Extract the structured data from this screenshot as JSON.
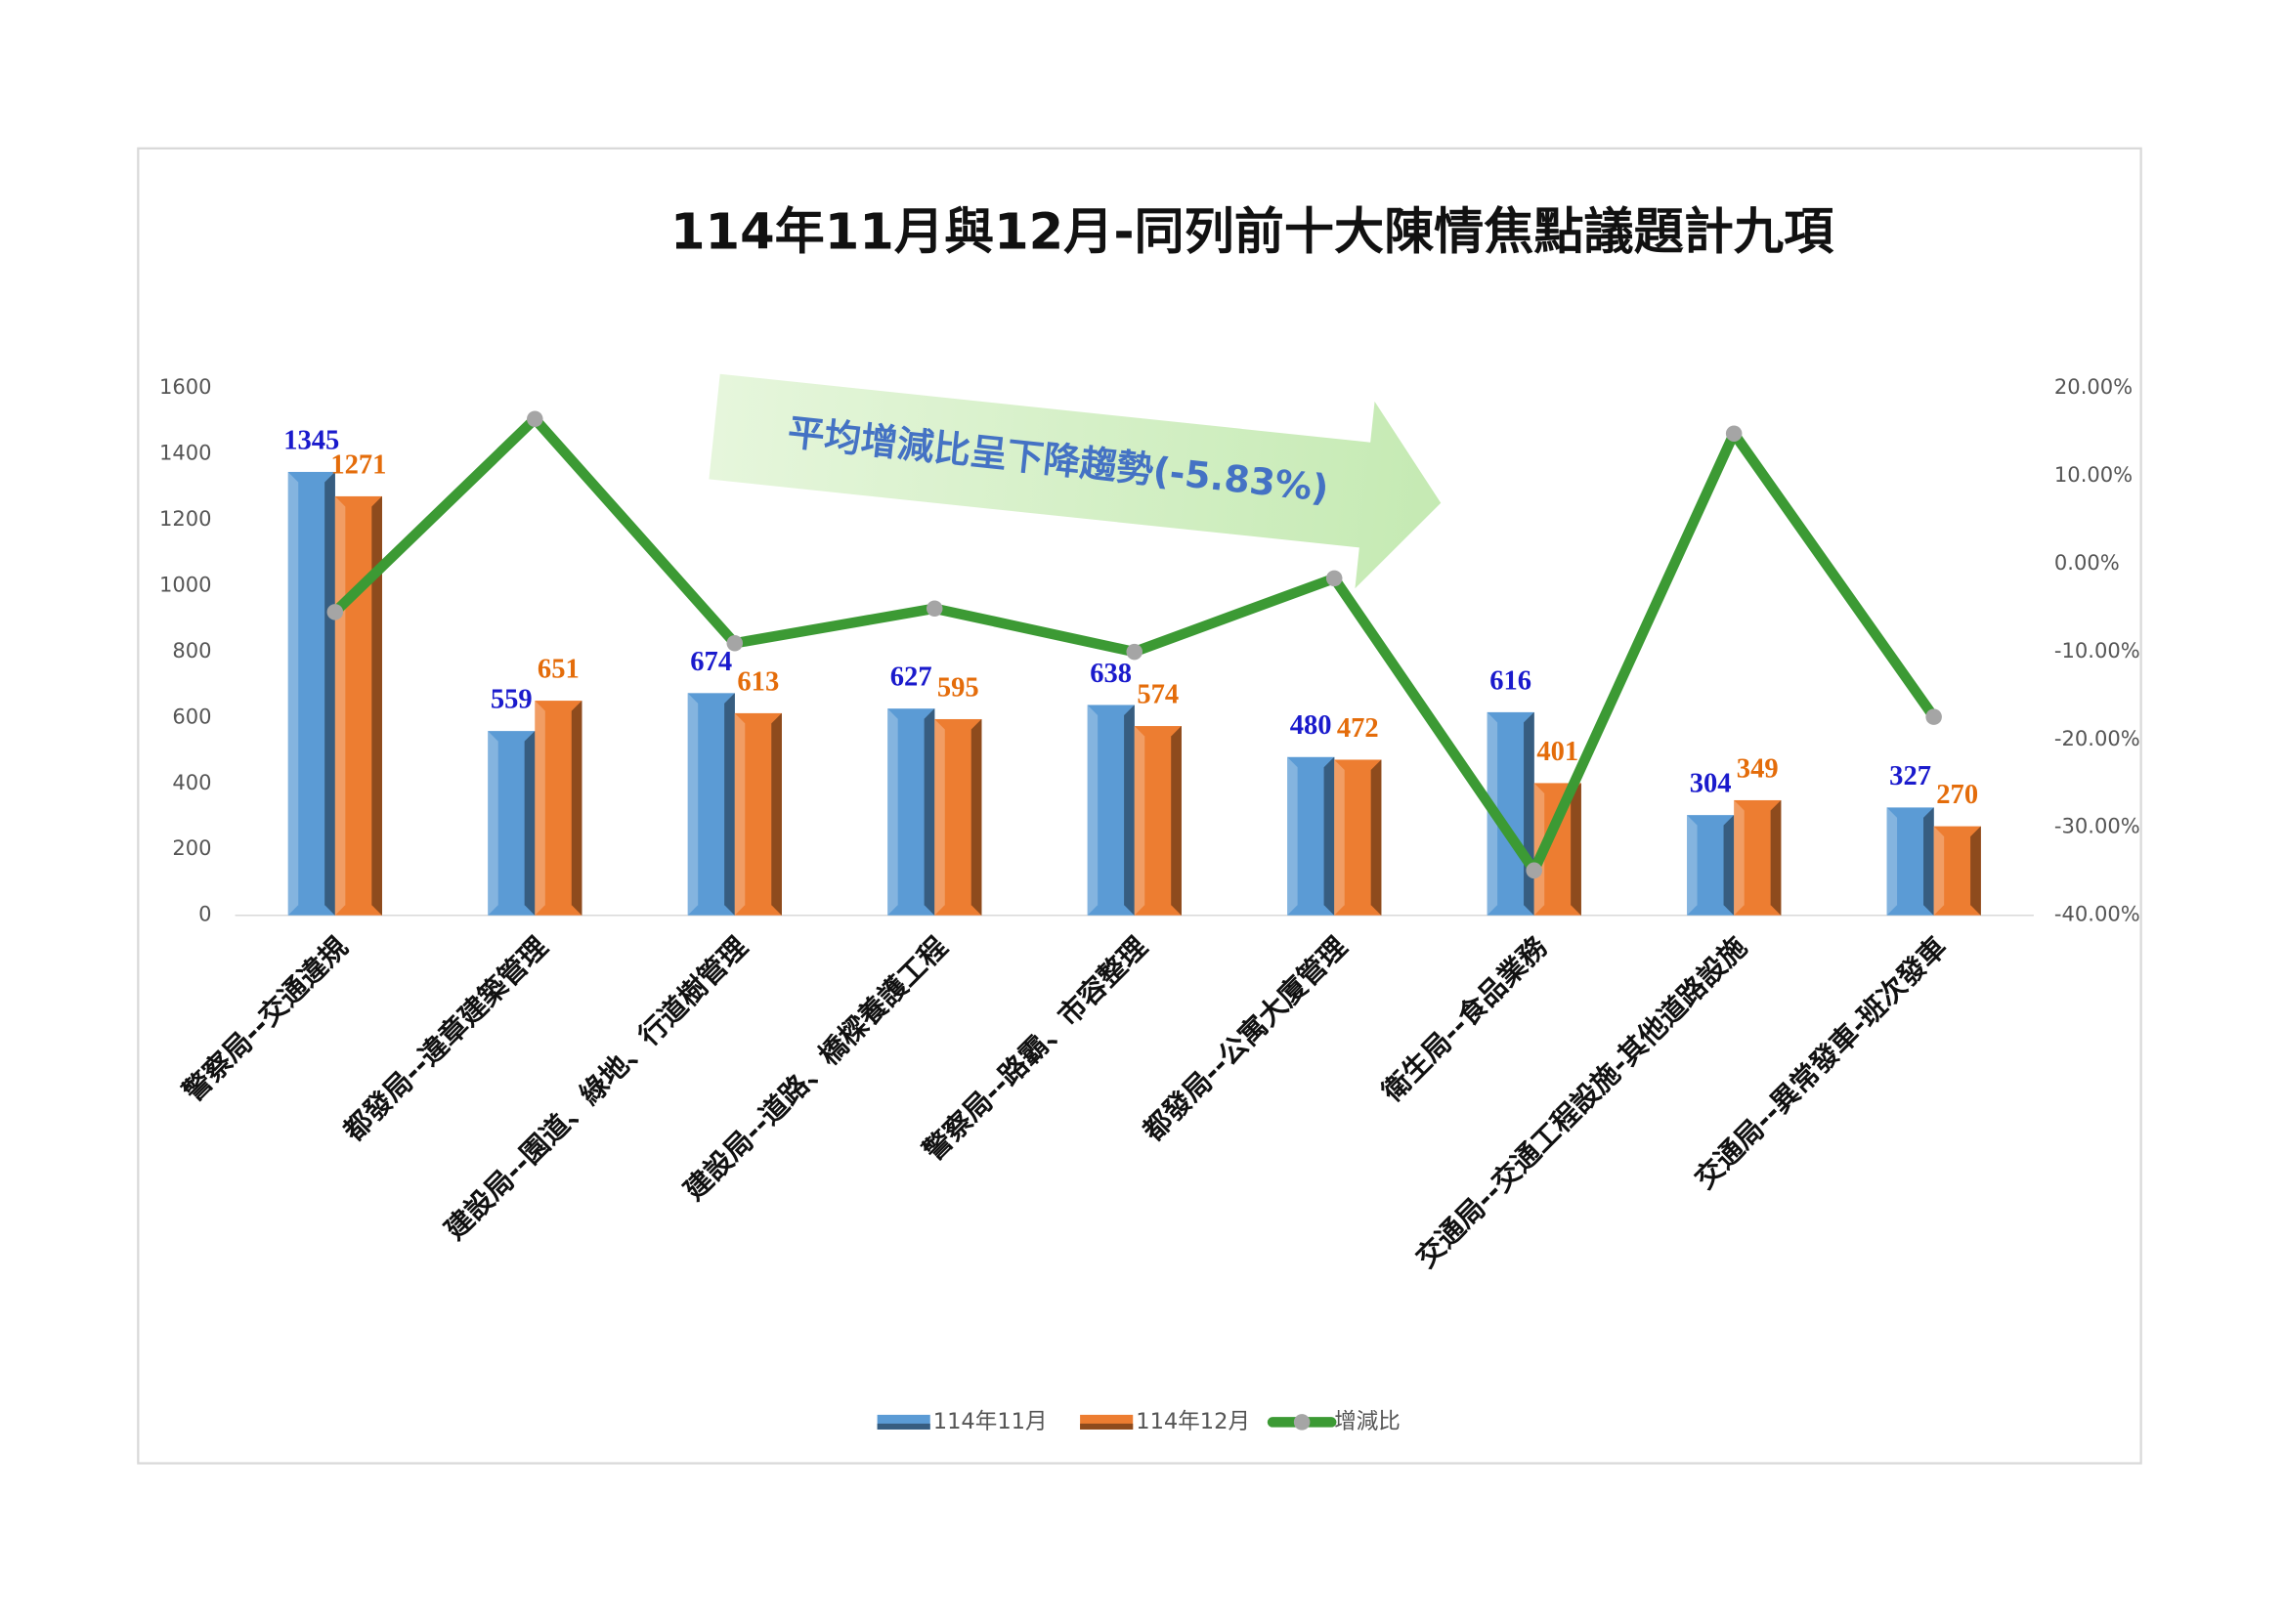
{
  "chart_data": {
    "type": "bar",
    "title": "114年11月與12月-同列前十大陳情焦點議題計九項",
    "annotation": "平均增減比呈下降趨勢(-5.83%)",
    "categories": [
      "警察局--交通違規",
      "都發局--違章建築管理",
      "建設局--園道、綠地、行道樹管理",
      "建設局--道路、橋樑養護工程",
      "警察局--路霸、市容整理",
      "都發局--公寓大廈管理",
      "衛生局--食品業務",
      "交通局--交通工程設施-其他道路設施",
      "交通局--異常發車-班次發車"
    ],
    "series": [
      {
        "name": "114年11月",
        "color": "#5b9bd5",
        "label_color": "#1a1acc",
        "values": [
          1345,
          559,
          674,
          627,
          638,
          480,
          616,
          304,
          327
        ]
      },
      {
        "name": "114年12月",
        "color": "#ed7d31",
        "label_color": "#e46c0a",
        "values": [
          1271,
          651,
          613,
          595,
          574,
          472,
          401,
          349,
          270
        ]
      },
      {
        "name": "增減比",
        "type": "line",
        "axis": "y2",
        "color": "#3c9a34",
        "marker_color": "#a5a5a5",
        "values": [
          -5.5,
          16.46,
          -9.05,
          -5.1,
          -10.03,
          -1.67,
          -34.9,
          14.8,
          -17.43
        ]
      }
    ],
    "ylim": [
      0,
      1600
    ],
    "yticks": [
      0,
      200,
      400,
      600,
      800,
      1000,
      1200,
      1400,
      1600
    ],
    "y2lim": [
      -40,
      20
    ],
    "y2ticks": [
      {
        "value": -40,
        "label": "-40.00%"
      },
      {
        "value": -30,
        "label": "-30.00%"
      },
      {
        "value": -20,
        "label": "-20.00%"
      },
      {
        "value": -10,
        "label": "-10.00%"
      },
      {
        "value": 0,
        "label": "0.00%"
      },
      {
        "value": 10,
        "label": "10.00%"
      },
      {
        "value": 20,
        "label": "20.00%"
      }
    ],
    "legend": "bottom"
  }
}
